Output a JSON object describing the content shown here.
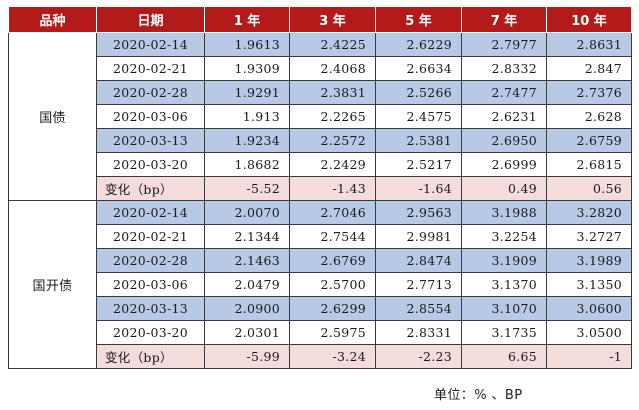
{
  "colors": {
    "header_bg": "#b31b1b",
    "stripe_blue": "#b7c9e4",
    "change_row_pink": "#f5dcdc"
  },
  "header": [
    "品种",
    "日期",
    "1 年",
    "3 年",
    "5 年",
    "7 年",
    "10 年"
  ],
  "groups": [
    {
      "name": "国债",
      "rows": [
        {
          "date": "2020-02-14",
          "values": [
            "1.9613",
            "2.4225",
            "2.6229",
            "2.7977",
            "2.8631"
          ]
        },
        {
          "date": "2020-02-21",
          "values": [
            "1.9309",
            "2.4068",
            "2.6634",
            "2.8332",
            "2.847"
          ]
        },
        {
          "date": "2020-02-28",
          "values": [
            "1.9291",
            "2.3831",
            "2.5266",
            "2.7477",
            "2.7376"
          ]
        },
        {
          "date": "2020-03-06",
          "values": [
            "1.913",
            "2.2265",
            "2.4575",
            "2.6231",
            "2.628"
          ]
        },
        {
          "date": "2020-03-13",
          "values": [
            "1.9234",
            "2.2572",
            "2.5381",
            "2.6950",
            "2.6759"
          ]
        },
        {
          "date": "2020-03-20",
          "values": [
            "1.8682",
            "2.2429",
            "2.5217",
            "2.6999",
            "2.6815"
          ]
        }
      ],
      "change": {
        "label": "变化（bp）",
        "values": [
          "-5.52",
          "-1.43",
          "-1.64",
          "0.49",
          "0.56"
        ]
      }
    },
    {
      "name": "国开债",
      "rows": [
        {
          "date": "2020-02-14",
          "values": [
            "2.0070",
            "2.7046",
            "2.9563",
            "3.1988",
            "3.2820"
          ]
        },
        {
          "date": "2020-02-21",
          "values": [
            "2.1344",
            "2.7544",
            "2.9981",
            "3.2254",
            "3.2727"
          ]
        },
        {
          "date": "2020-02-28",
          "values": [
            "2.1463",
            "2.6769",
            "2.8474",
            "3.1909",
            "3.1989"
          ]
        },
        {
          "date": "2020-03-06",
          "values": [
            "2.0479",
            "2.5700",
            "2.7713",
            "3.1370",
            "3.1350"
          ]
        },
        {
          "date": "2020-03-13",
          "values": [
            "2.0900",
            "2.6299",
            "2.8554",
            "3.1070",
            "3.0600"
          ]
        },
        {
          "date": "2020-03-20",
          "values": [
            "2.0301",
            "2.5975",
            "2.8331",
            "3.1735",
            "3.0500"
          ]
        }
      ],
      "change": {
        "label": "变化（bp）",
        "values": [
          "-5.99",
          "-3.24",
          "-2.23",
          "6.65",
          "-1"
        ]
      }
    }
  ],
  "unit_note": "单位：% 、BP"
}
